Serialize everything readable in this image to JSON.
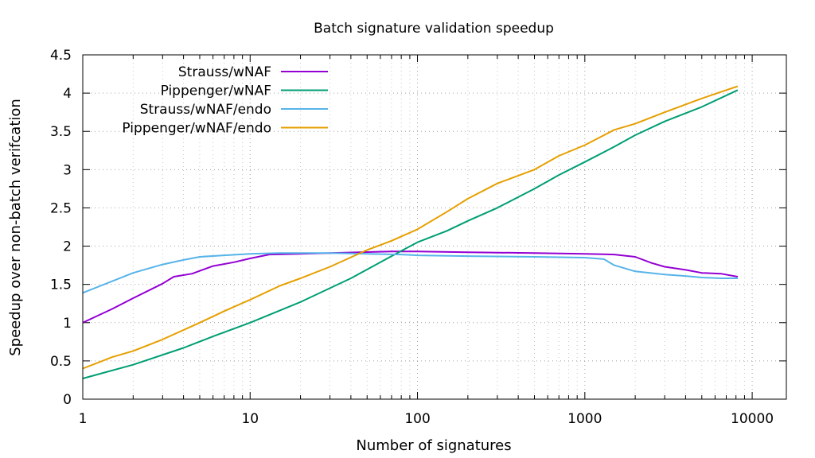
{
  "chart_data": {
    "type": "line",
    "title": "Batch signature validation speedup",
    "xlabel": "Number of signatures",
    "ylabel": "Speedup over non-batch verifcation",
    "xscale": "log",
    "xlim": [
      1,
      16000
    ],
    "ylim": [
      0,
      4.5
    ],
    "xticks": [
      1,
      10,
      100,
      1000,
      10000
    ],
    "xtick_labels": [
      "1",
      "10",
      "100",
      "1000",
      "10000"
    ],
    "yticks": [
      0,
      0.5,
      1,
      1.5,
      2,
      2.5,
      3,
      3.5,
      4,
      4.5
    ],
    "ytick_labels": [
      "0",
      "0.5",
      "1",
      "1.5",
      "2",
      "2.5",
      "3",
      "3.5",
      "4",
      "4.5"
    ],
    "grid": true,
    "legend_position": "top-left",
    "series": [
      {
        "name": "Strauss/wNAF",
        "color": "#9400d3",
        "x": [
          1,
          1.5,
          2,
          3,
          3.5,
          4.5,
          6,
          8,
          10,
          13,
          20,
          30,
          45,
          70,
          100,
          200,
          500,
          1000,
          1500,
          2000,
          2500,
          3000,
          4000,
          5000,
          6500,
          8192
        ],
        "y": [
          1.0,
          1.18,
          1.32,
          1.51,
          1.6,
          1.64,
          1.74,
          1.79,
          1.84,
          1.89,
          1.9,
          1.91,
          1.92,
          1.93,
          1.93,
          1.92,
          1.91,
          1.9,
          1.89,
          1.86,
          1.78,
          1.73,
          1.69,
          1.65,
          1.64,
          1.6
        ]
      },
      {
        "name": "Pippenger/wNAF",
        "color": "#009e73",
        "x": [
          1,
          2,
          4,
          6,
          10,
          20,
          40,
          70,
          100,
          150,
          200,
          300,
          500,
          700,
          1000,
          1500,
          2000,
          3000,
          5000,
          8192
        ],
        "y": [
          0.27,
          0.45,
          0.67,
          0.82,
          1.0,
          1.27,
          1.58,
          1.87,
          2.05,
          2.2,
          2.33,
          2.5,
          2.75,
          2.93,
          3.1,
          3.3,
          3.45,
          3.63,
          3.82,
          4.04
        ]
      },
      {
        "name": "Strauss/wNAF/endo",
        "color": "#56b4e9",
        "x": [
          1,
          2,
          3,
          4,
          5,
          7,
          10,
          15,
          20,
          30,
          50,
          80,
          100,
          200,
          500,
          1000,
          1300,
          1500,
          2000,
          3000,
          4000,
          5000,
          6500,
          8192
        ],
        "y": [
          1.39,
          1.65,
          1.76,
          1.82,
          1.86,
          1.88,
          1.9,
          1.91,
          1.91,
          1.91,
          1.9,
          1.89,
          1.88,
          1.87,
          1.86,
          1.85,
          1.83,
          1.75,
          1.67,
          1.63,
          1.61,
          1.59,
          1.58,
          1.58
        ]
      },
      {
        "name": "Pippenger/wNAF/endo",
        "color": "#e69f00",
        "x": [
          1,
          1.5,
          2,
          3,
          5,
          7,
          10,
          15,
          20,
          30,
          50,
          70,
          100,
          150,
          200,
          300,
          500,
          700,
          1000,
          1500,
          2000,
          3000,
          5000,
          7000,
          8192
        ],
        "y": [
          0.4,
          0.55,
          0.63,
          0.78,
          1.0,
          1.15,
          1.3,
          1.48,
          1.58,
          1.73,
          1.95,
          2.07,
          2.22,
          2.45,
          2.62,
          2.82,
          3.0,
          3.18,
          3.32,
          3.52,
          3.6,
          3.75,
          3.93,
          4.04,
          4.09
        ]
      }
    ]
  }
}
